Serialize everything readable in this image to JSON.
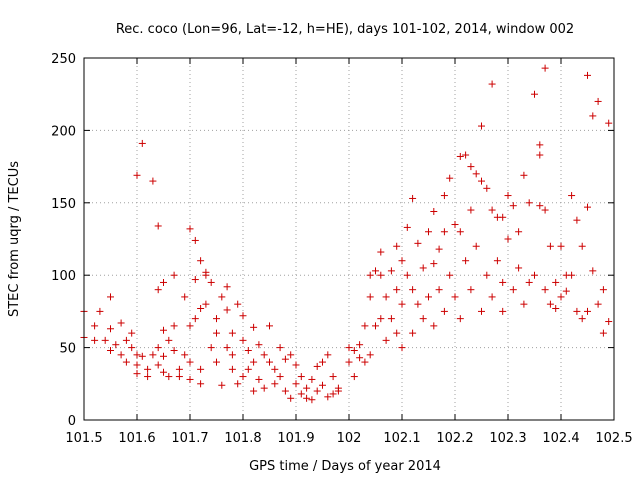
{
  "chart_data": {
    "type": "scatter",
    "title": "Rec. coco (Lon=96, Lat=-12, h=HE), days 101-102, 2014, window 002",
    "xlabel": "GPS time / Days of year 2014",
    "ylabel": "STEC from uqrg / TECUs",
    "xlim": [
      101.5,
      102.5
    ],
    "ylim": [
      0,
      250
    ],
    "xticks": [
      "101.5",
      "101.6",
      "101.7",
      "101.8",
      "101.9",
      "102",
      "102.1",
      "102.2",
      "102.3",
      "102.4",
      "102.5"
    ],
    "xtick_values": [
      101.5,
      101.6,
      101.7,
      101.8,
      101.9,
      102.0,
      102.1,
      102.2,
      102.3,
      102.4,
      102.5
    ],
    "yticks": [
      "0",
      "50",
      "100",
      "150",
      "200",
      "250"
    ],
    "ytick_values": [
      0,
      50,
      100,
      150,
      200,
      250
    ],
    "grid": true,
    "marker": "+",
    "color": "#cc0000",
    "series": [
      {
        "points": [
          [
            101.5,
            75
          ],
          [
            101.5,
            57
          ],
          [
            101.52,
            65
          ],
          [
            101.52,
            55
          ],
          [
            101.53,
            75
          ],
          [
            101.54,
            55
          ],
          [
            101.55,
            85
          ],
          [
            101.55,
            63
          ],
          [
            101.55,
            48
          ],
          [
            101.56,
            52
          ],
          [
            101.57,
            67
          ],
          [
            101.57,
            45
          ],
          [
            101.58,
            55
          ],
          [
            101.58,
            40
          ],
          [
            101.59,
            60
          ],
          [
            101.59,
            50
          ],
          [
            101.6,
            45
          ],
          [
            101.6,
            38
          ],
          [
            101.6,
            32
          ],
          [
            101.6,
            169
          ],
          [
            101.61,
            191
          ],
          [
            101.61,
            44
          ],
          [
            101.62,
            35
          ],
          [
            101.62,
            30
          ],
          [
            101.63,
            45
          ],
          [
            101.63,
            165
          ],
          [
            101.64,
            134
          ],
          [
            101.64,
            90
          ],
          [
            101.64,
            50
          ],
          [
            101.64,
            38
          ],
          [
            101.65,
            95
          ],
          [
            101.65,
            62
          ],
          [
            101.65,
            44
          ],
          [
            101.65,
            33
          ],
          [
            101.66,
            30
          ],
          [
            101.66,
            55
          ],
          [
            101.67,
            100
          ],
          [
            101.67,
            65
          ],
          [
            101.67,
            48
          ],
          [
            101.68,
            30
          ],
          [
            101.68,
            35
          ],
          [
            101.69,
            85
          ],
          [
            101.69,
            45
          ],
          [
            101.7,
            132
          ],
          [
            101.7,
            65
          ],
          [
            101.7,
            40
          ],
          [
            101.7,
            28
          ],
          [
            101.71,
            124
          ],
          [
            101.71,
            97
          ],
          [
            101.71,
            70
          ],
          [
            101.72,
            110
          ],
          [
            101.72,
            77
          ],
          [
            101.72,
            35
          ],
          [
            101.72,
            25
          ],
          [
            101.73,
            102
          ],
          [
            101.73,
            100
          ],
          [
            101.73,
            80
          ],
          [
            101.74,
            95
          ],
          [
            101.74,
            50
          ],
          [
            101.75,
            70
          ],
          [
            101.75,
            60
          ],
          [
            101.75,
            40
          ],
          [
            101.76,
            85
          ],
          [
            101.76,
            24
          ],
          [
            101.77,
            92
          ],
          [
            101.77,
            76
          ],
          [
            101.77,
            50
          ],
          [
            101.78,
            60
          ],
          [
            101.78,
            45
          ],
          [
            101.78,
            35
          ],
          [
            101.79,
            80
          ],
          [
            101.79,
            25
          ],
          [
            101.8,
            72
          ],
          [
            101.8,
            55
          ],
          [
            101.8,
            30
          ],
          [
            101.81,
            48
          ],
          [
            101.81,
            35
          ],
          [
            101.82,
            64
          ],
          [
            101.82,
            40
          ],
          [
            101.82,
            20
          ],
          [
            101.83,
            52
          ],
          [
            101.83,
            28
          ],
          [
            101.84,
            45
          ],
          [
            101.84,
            22
          ],
          [
            101.85,
            65
          ],
          [
            101.85,
            40
          ],
          [
            101.86,
            35
          ],
          [
            101.86,
            25
          ],
          [
            101.87,
            50
          ],
          [
            101.87,
            30
          ],
          [
            101.88,
            42
          ],
          [
            101.88,
            20
          ],
          [
            101.89,
            45
          ],
          [
            101.89,
            15
          ],
          [
            101.9,
            38
          ],
          [
            101.9,
            25
          ],
          [
            101.91,
            30
          ],
          [
            101.91,
            18
          ],
          [
            101.92,
            22
          ],
          [
            101.92,
            15
          ],
          [
            101.93,
            28
          ],
          [
            101.93,
            14
          ],
          [
            101.94,
            37
          ],
          [
            101.94,
            20
          ],
          [
            101.95,
            40
          ],
          [
            101.95,
            24
          ],
          [
            101.96,
            45
          ],
          [
            101.96,
            16
          ],
          [
            101.97,
            30
          ],
          [
            101.97,
            18
          ],
          [
            101.98,
            20
          ],
          [
            101.98,
            22
          ],
          [
            102.0,
            50
          ],
          [
            102.0,
            40
          ],
          [
            102.01,
            48
          ],
          [
            102.01,
            30
          ],
          [
            102.02,
            52
          ],
          [
            102.02,
            43
          ],
          [
            102.03,
            65
          ],
          [
            102.03,
            40
          ],
          [
            102.04,
            100
          ],
          [
            102.04,
            85
          ],
          [
            102.04,
            45
          ],
          [
            102.05,
            103
          ],
          [
            102.05,
            65
          ],
          [
            102.06,
            116
          ],
          [
            102.06,
            100
          ],
          [
            102.06,
            70
          ],
          [
            102.07,
            85
          ],
          [
            102.07,
            55
          ],
          [
            102.08,
            103
          ],
          [
            102.08,
            70
          ],
          [
            102.09,
            120
          ],
          [
            102.09,
            90
          ],
          [
            102.09,
            60
          ],
          [
            102.1,
            110
          ],
          [
            102.1,
            80
          ],
          [
            102.1,
            50
          ],
          [
            102.11,
            133
          ],
          [
            102.11,
            100
          ],
          [
            102.12,
            153
          ],
          [
            102.12,
            90
          ],
          [
            102.12,
            60
          ],
          [
            102.13,
            122
          ],
          [
            102.13,
            80
          ],
          [
            102.14,
            105
          ],
          [
            102.14,
            70
          ],
          [
            102.15,
            130
          ],
          [
            102.15,
            85
          ],
          [
            102.16,
            144
          ],
          [
            102.16,
            108
          ],
          [
            102.16,
            65
          ],
          [
            102.17,
            118
          ],
          [
            102.17,
            90
          ],
          [
            102.18,
            155
          ],
          [
            102.18,
            130
          ],
          [
            102.18,
            75
          ],
          [
            102.19,
            167
          ],
          [
            102.19,
            100
          ],
          [
            102.2,
            135
          ],
          [
            102.2,
            85
          ],
          [
            102.21,
            182
          ],
          [
            102.21,
            130
          ],
          [
            102.21,
            70
          ],
          [
            102.22,
            183
          ],
          [
            102.22,
            110
          ],
          [
            102.23,
            175
          ],
          [
            102.23,
            145
          ],
          [
            102.23,
            90
          ],
          [
            102.24,
            170
          ],
          [
            102.24,
            120
          ],
          [
            102.25,
            203
          ],
          [
            102.25,
            165
          ],
          [
            102.25,
            75
          ],
          [
            102.26,
            160
          ],
          [
            102.26,
            100
          ],
          [
            102.27,
            232
          ],
          [
            102.27,
            145
          ],
          [
            102.27,
            85
          ],
          [
            102.28,
            140
          ],
          [
            102.28,
            110
          ],
          [
            102.29,
            140
          ],
          [
            102.29,
            95
          ],
          [
            102.29,
            75
          ],
          [
            102.3,
            155
          ],
          [
            102.3,
            125
          ],
          [
            102.31,
            148
          ],
          [
            102.31,
            90
          ],
          [
            102.32,
            130
          ],
          [
            102.32,
            105
          ],
          [
            102.33,
            169
          ],
          [
            102.33,
            80
          ],
          [
            102.34,
            150
          ],
          [
            102.34,
            95
          ],
          [
            102.35,
            225
          ],
          [
            102.35,
            100
          ],
          [
            102.36,
            190
          ],
          [
            102.36,
            183
          ],
          [
            102.36,
            148
          ],
          [
            102.37,
            243
          ],
          [
            102.37,
            145
          ],
          [
            102.37,
            90
          ],
          [
            102.38,
            120
          ],
          [
            102.38,
            80
          ],
          [
            102.39,
            95
          ],
          [
            102.39,
            77
          ],
          [
            102.4,
            85
          ],
          [
            102.4,
            120
          ],
          [
            102.41,
            100
          ],
          [
            102.41,
            89
          ],
          [
            102.42,
            155
          ],
          [
            102.42,
            100
          ],
          [
            102.43,
            138
          ],
          [
            102.43,
            75
          ],
          [
            102.44,
            120
          ],
          [
            102.44,
            70
          ],
          [
            102.45,
            238
          ],
          [
            102.45,
            147
          ],
          [
            102.45,
            75
          ],
          [
            102.46,
            210
          ],
          [
            102.46,
            103
          ],
          [
            102.47,
            220
          ],
          [
            102.47,
            80
          ],
          [
            102.48,
            90
          ],
          [
            102.48,
            60
          ],
          [
            102.49,
            205
          ],
          [
            102.49,
            68
          ]
        ]
      }
    ]
  }
}
